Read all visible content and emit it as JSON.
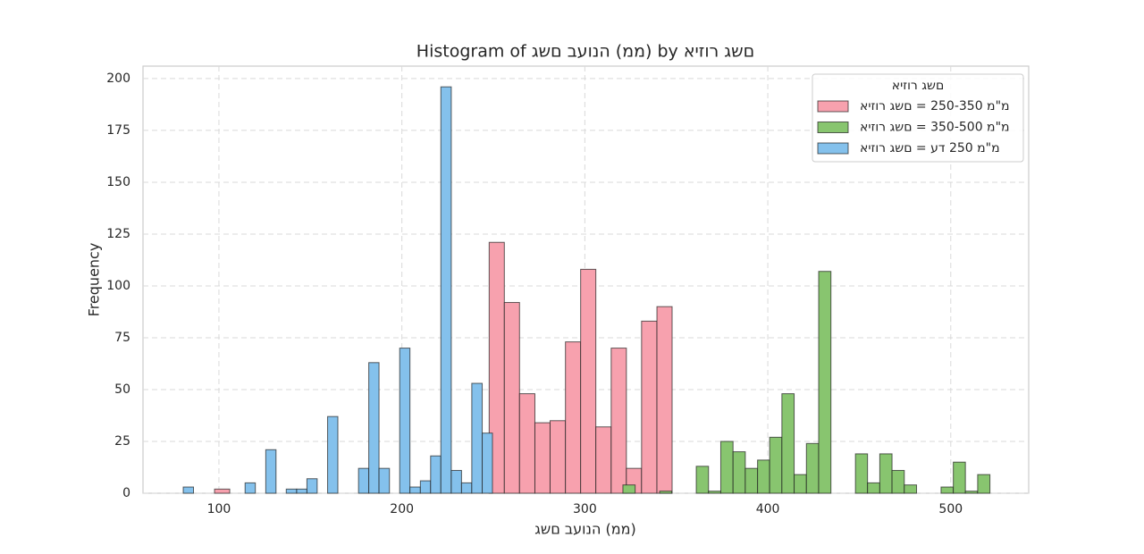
{
  "chart_data": {
    "type": "histogram",
    "title": "Histogram of גשם בעונה (ממ) by איזור גשם",
    "xlabel": "גשם בעונה (ממ)",
    "ylabel": "Frequency",
    "legend_title": "איזור גשם",
    "legend_position": "upper right",
    "grid": true,
    "xlim": [
      58.5,
      542.6
    ],
    "xticks": [
      100,
      200,
      300,
      400,
      500
    ],
    "ylim": [
      0,
      206
    ],
    "yticks": [
      0,
      25,
      50,
      75,
      100,
      125,
      150,
      175,
      200
    ],
    "series": [
      {
        "name": "איזור גשם = 250-350 מ\"מ",
        "color": "#f7a1ae",
        "bins": [
          97.6,
          105.9,
          114.3,
          122.6,
          131.0,
          139.3,
          147.6,
          156.0,
          164.3,
          172.6,
          181.0,
          189.3,
          197.6,
          206.0,
          214.3,
          222.7,
          231.0,
          239.3,
          247.7,
          256.0,
          264.3,
          272.7,
          281.0,
          289.4,
          297.7,
          306.0,
          314.4,
          322.7,
          331.0,
          339.4,
          347.7
        ],
        "values": [
          2,
          0,
          0,
          0,
          0,
          0,
          0,
          0,
          0,
          0,
          0,
          0,
          0,
          0,
          0,
          0,
          0,
          0,
          121,
          92,
          48,
          34,
          35,
          73,
          108,
          32,
          70,
          12,
          83,
          90
        ]
      },
      {
        "name": "איזור גשם = 350-500 מ\"מ",
        "color": "#88c56f",
        "bins": [
          320.8,
          327.5,
          334.2,
          340.9,
          347.5,
          354.2,
          360.9,
          367.6,
          374.3,
          381.0,
          387.7,
          394.4,
          401.0,
          407.7,
          414.4,
          421.1,
          427.8,
          434.5,
          441.2,
          447.9,
          454.5,
          461.2,
          467.9,
          474.6,
          481.3,
          488.0,
          494.7,
          501.4,
          508.0,
          514.7,
          521.4
        ],
        "values": [
          4,
          0,
          0,
          1,
          0,
          0,
          13,
          1,
          25,
          20,
          12,
          16,
          27,
          48,
          9,
          24,
          107,
          0,
          0,
          19,
          5,
          19,
          11,
          4,
          0,
          0,
          3,
          15,
          1,
          9
        ]
      },
      {
        "name": "איזור גשם = עד 250 מ\"מ",
        "color": "#84c1ec",
        "bins": [
          80.5,
          86.1,
          91.8,
          97.4,
          103.0,
          108.7,
          114.3,
          119.9,
          125.6,
          131.2,
          136.8,
          142.5,
          148.1,
          153.7,
          159.4,
          165.0,
          170.6,
          176.3,
          181.9,
          187.5,
          193.2,
          198.8,
          204.4,
          210.1,
          215.7,
          221.3,
          227.0,
          232.6,
          238.2,
          243.9,
          249.5
        ],
        "values": [
          3,
          0,
          0,
          0,
          0,
          0,
          5,
          0,
          21,
          0,
          2,
          2,
          7,
          0,
          37,
          0,
          0,
          12,
          63,
          12,
          0,
          70,
          3,
          6,
          18,
          196,
          11,
          5,
          53,
          29
        ]
      }
    ]
  }
}
